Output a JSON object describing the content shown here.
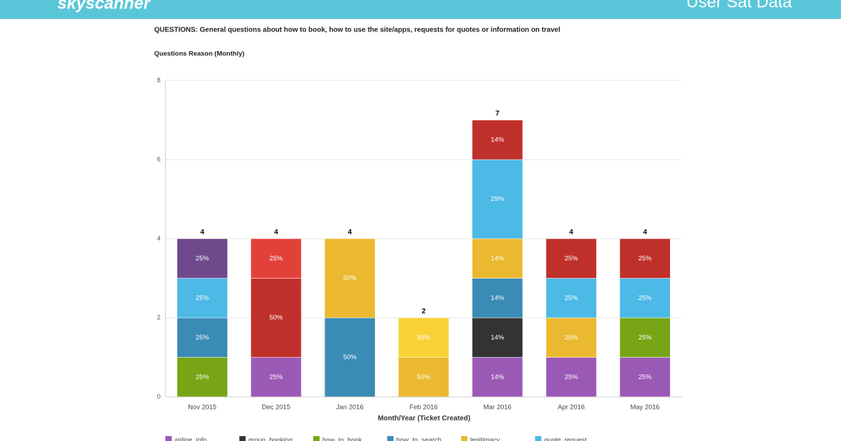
{
  "header": {
    "logo": "skyscanner",
    "title": "User Sat Data"
  },
  "chart_data": {
    "type": "stacked-bar",
    "title": "QUESTIONS: General questions about how to book, how to use the site/apps, requests for quotes or information on travel",
    "subtitle": "Questions Reason (Monthly)",
    "x_label": "Month/Year (Ticket Created)",
    "categories": [
      "Nov 2015",
      "Dec 2015",
      "Jan 2016",
      "Feb 2016",
      "Mar 2016",
      "Apr 2016",
      "May 2016"
    ],
    "totals": [
      4,
      4,
      4,
      2,
      7,
      4,
      4
    ],
    "ylim": [
      0,
      8
    ],
    "yticks": [
      0,
      2,
      4,
      6,
      8
    ],
    "grid": true,
    "series": [
      {
        "name": "airline_info",
        "color": "#9b59b6",
        "values": [
          null,
          1,
          null,
          null,
          1,
          1,
          1
        ],
        "percent_labels": [
          null,
          "25%",
          null,
          null,
          "14%",
          "25%",
          "25%"
        ]
      },
      {
        "name": "group_booking",
        "color": "#333333",
        "values": [
          null,
          null,
          null,
          null,
          1,
          null,
          null
        ],
        "percent_labels": [
          null,
          null,
          null,
          null,
          "14%",
          null,
          null
        ]
      },
      {
        "name": "how_to_book",
        "color": "#77a515",
        "values": [
          1,
          null,
          null,
          null,
          null,
          null,
          1
        ],
        "percent_labels": [
          "25%",
          null,
          null,
          null,
          null,
          null,
          "25%"
        ]
      },
      {
        "name": "how_to_search",
        "color": "#3a8bb5",
        "values": [
          1,
          null,
          2,
          null,
          1,
          null,
          null
        ],
        "percent_labels": [
          "25%",
          null,
          "50%",
          null,
          "14%",
          null,
          null
        ]
      },
      {
        "name": "legitimacy",
        "color": "#ebb92f",
        "values": [
          null,
          null,
          2,
          1,
          1,
          1,
          null
        ],
        "percent_labels": [
          null,
          null,
          "50%",
          "50%",
          "14%",
          "25%",
          null
        ]
      },
      {
        "name": "quote_request",
        "color": "#4db9e6",
        "values": [
          1,
          null,
          null,
          null,
          2,
          1,
          1
        ],
        "percent_labels": [
          "25%",
          null,
          null,
          null,
          "29%",
          "25%",
          "25%"
        ]
      },
      {
        "name": null,
        "color": "#f8d235",
        "values": [
          null,
          null,
          null,
          1,
          null,
          null,
          null
        ],
        "percent_labels": [
          null,
          null,
          null,
          "50%",
          null,
          null,
          null
        ]
      },
      {
        "name": null,
        "color": "#c0302a",
        "values": [
          null,
          2,
          null,
          null,
          1,
          1,
          1
        ],
        "percent_labels": [
          null,
          "50%",
          null,
          null,
          "14%",
          "25%",
          "25%"
        ]
      },
      {
        "name": null,
        "color": "#e2413a",
        "values": [
          null,
          1,
          null,
          null,
          null,
          null,
          null
        ],
        "percent_labels": [
          null,
          "25%",
          null,
          null,
          null,
          null,
          null
        ]
      },
      {
        "name": null,
        "color": "#6e4a8c",
        "values": [
          1,
          null,
          null,
          null,
          null,
          null,
          null
        ],
        "percent_labels": [
          "25%",
          null,
          null,
          null,
          null,
          null,
          null
        ]
      }
    ]
  }
}
